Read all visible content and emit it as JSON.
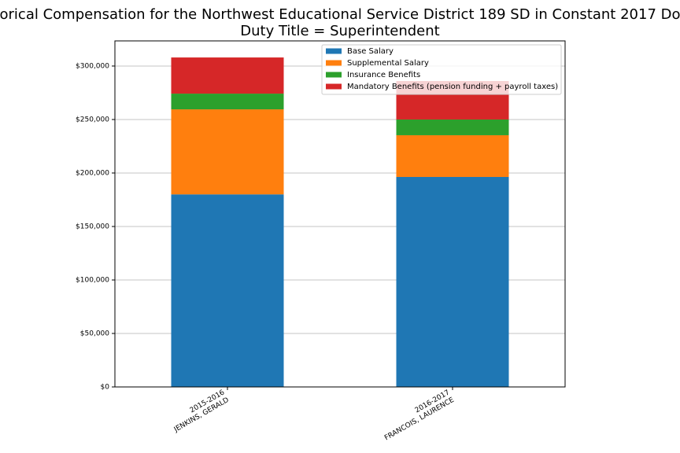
{
  "chart_data": {
    "type": "stacked_bar",
    "title": "orical Compensation for the Northwest Educational Service District 189 SD in Constant 2017 Do",
    "subtitle": "Duty Title = Superintendent",
    "categories": [
      [
        "2015-2016",
        "JENKINS, GERALD"
      ],
      [
        "2016-2017",
        "FRANCOIS, LAURENCE"
      ]
    ],
    "series": [
      {
        "name": "Base Salary",
        "color": "#1f77b4",
        "values": [
          180000,
          196300
        ]
      },
      {
        "name": "Supplemental Salary",
        "color": "#ff7f0e",
        "values": [
          79500,
          39000
        ]
      },
      {
        "name": "Insurance Benefits",
        "color": "#2ca02c",
        "values": [
          14700,
          14700
        ]
      },
      {
        "name": "Mandatory Benefits (pension funding + payroll taxes)",
        "color": "#d62728",
        "values": [
          33800,
          36000
        ]
      }
    ],
    "ylim": [
      0,
      323500
    ],
    "yticks": [
      {
        "value": 0,
        "label": "$0"
      },
      {
        "value": 50000,
        "label": "$50,000"
      },
      {
        "value": 100000,
        "label": "$100,000"
      },
      {
        "value": 150000,
        "label": "$150,000"
      },
      {
        "value": 200000,
        "label": "$200,000"
      },
      {
        "value": 250000,
        "label": "$250,000"
      },
      {
        "value": 300000,
        "label": "$300,000"
      }
    ],
    "grid": true,
    "legend": "upper right"
  }
}
